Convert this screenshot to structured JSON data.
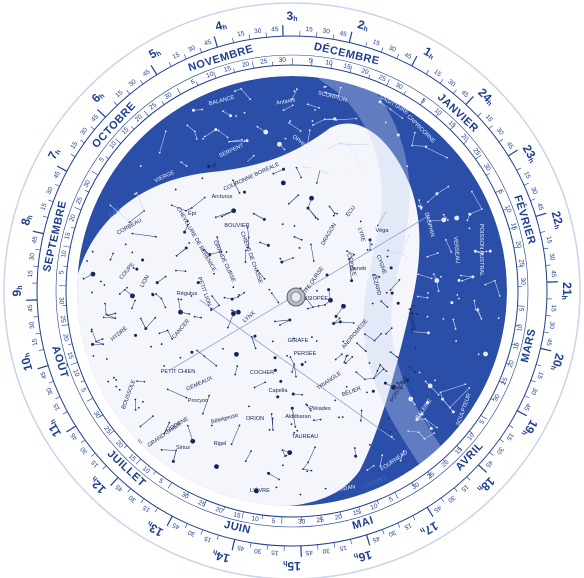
{
  "months": [
    {
      "label": "NOVEMBRE"
    },
    {
      "label": "DÉCEMBRE"
    },
    {
      "label": "JANVIER"
    },
    {
      "label": "FÉVRIER"
    },
    {
      "label": "MARS"
    },
    {
      "label": "AVRIL"
    },
    {
      "label": "MAI"
    },
    {
      "label": "JUIN"
    },
    {
      "label": "JUILLET"
    },
    {
      "label": "AOÛT"
    },
    {
      "label": "SEPTEMBRE"
    },
    {
      "label": "OCTOBRE"
    }
  ],
  "day_ticks": [
    "5",
    "10",
    "15",
    "20",
    "25",
    "30"
  ],
  "hours": [
    {
      "num": "3",
      "unit": "h"
    },
    {
      "num": "2",
      "unit": "h"
    },
    {
      "num": "1",
      "unit": "h"
    },
    {
      "num": "24",
      "unit": "h"
    },
    {
      "num": "23",
      "unit": "h"
    },
    {
      "num": "22",
      "unit": "h"
    },
    {
      "num": "21",
      "unit": "h"
    },
    {
      "num": "20",
      "unit": "h"
    },
    {
      "num": "19",
      "unit": "h"
    },
    {
      "num": "18",
      "unit": "h"
    },
    {
      "num": "17",
      "unit": "h"
    },
    {
      "num": "16",
      "unit": "h"
    },
    {
      "num": "15",
      "unit": "h"
    },
    {
      "num": "14",
      "unit": "h"
    },
    {
      "num": "13",
      "unit": "h"
    },
    {
      "num": "12",
      "unit": "h"
    },
    {
      "num": "11",
      "unit": "h"
    },
    {
      "num": "10",
      "unit": "h"
    },
    {
      "num": "9",
      "unit": "h"
    },
    {
      "num": "8",
      "unit": "h"
    },
    {
      "num": "7",
      "unit": "h"
    },
    {
      "num": "6",
      "unit": "h"
    },
    {
      "num": "5",
      "unit": "h"
    },
    {
      "num": "4",
      "unit": "h"
    }
  ],
  "hour_minutes": [
    "15",
    "30",
    "45"
  ],
  "constellations": [
    "BALANCE",
    "Antarès",
    "SCORPION",
    "SAGITTAIRE",
    "CAPRICORNE",
    "SERPENT",
    "OPHIUCHUS",
    "HERCULE",
    "ÉCU",
    "AIGLE",
    "LYRE",
    "Véga",
    "DAUPHIN",
    "VERSEAU",
    "POISSON AUSTRAL",
    "PÉGASE",
    "CYGNE",
    "Deneb",
    "LÉZARD",
    "CÉPHÉE",
    "DRAGON",
    "PETITE OURSE",
    "COURONNE BORÉALE",
    "BOUVIER",
    "Arcturus",
    "VIERGE",
    "Épi",
    "CORBEAU",
    "COUPE",
    "CHEVELURE DE BÉRÉNICE",
    "GRANDE OURSE",
    "CHIENS DE CHASSE",
    "LION",
    "Régulus",
    "PETIT LION",
    "LYNX",
    "CANCER",
    "HYDRE",
    "BOUSSOLE",
    "GIRAFE",
    "CASSIOPÉE",
    "PERSÉE",
    "ANDROMÈDE",
    "TRIANGLE",
    "BÉLIER",
    "POISSONS",
    "BALEINE",
    "SCULPTEUR",
    "COCHER",
    "Capella",
    "GÉMEAUX",
    "PETIT CHIEN",
    "Procyon",
    "LICORNE",
    "Bételgeuse",
    "ORION",
    "Rigel",
    "Aldébaran",
    "Pléiades",
    "TAUREAU",
    "GRAND CHIEN",
    "Sirius",
    "LIÈVRE",
    "COLOMBE",
    "ÉRIDAN",
    "FOURNEAU",
    "POUPE"
  ],
  "compass": [
    "EST",
    "OUEST"
  ],
  "colors": {
    "sky_night": "#2b4fa8",
    "sky_window": "#f4f6fb",
    "ring_bg": "#ffffff",
    "ring_ink": "#1d3f8f",
    "star_dark": "#10245a",
    "star_light": "#e8eefc"
  }
}
